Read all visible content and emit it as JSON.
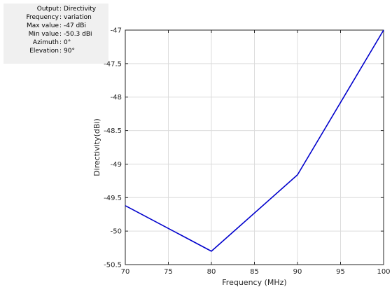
{
  "info_panel": {
    "rows": [
      {
        "label": "Output",
        "value": "Directivity"
      },
      {
        "label": "Frequency",
        "value": "variation"
      },
      {
        "label": "Max value",
        "value": "-47 dBi"
      },
      {
        "label": "Min value",
        "value": "-50.3 dBi"
      },
      {
        "label": "Azimuth",
        "value": "0°"
      },
      {
        "label": "Elevation",
        "value": "90°"
      }
    ]
  },
  "chart_data": {
    "type": "line",
    "xlabel": "Frequency (MHz)",
    "ylabel": "Directivity(dBi)",
    "xlim": [
      70,
      100
    ],
    "ylim": [
      -50.5,
      -47
    ],
    "xticks": [
      70,
      75,
      80,
      85,
      90,
      95,
      100
    ],
    "xtick_labels": [
      "70",
      "75",
      "80",
      "85",
      "90",
      "95",
      "100"
    ],
    "yticks": [
      -50.5,
      -50,
      -49.5,
      -49,
      -48.5,
      -48,
      -47.5,
      -47
    ],
    "ytick_labels": [
      "-50.5",
      "-50",
      "-49.5",
      "-49",
      "-48.5",
      "-48",
      "-47.5",
      "-47"
    ],
    "grid": true,
    "series": [
      {
        "color": "#0000cc",
        "x": [
          70,
          80,
          90,
          100
        ],
        "y": [
          -49.62,
          -50.3,
          -49.16,
          -47.0
        ]
      }
    ]
  }
}
